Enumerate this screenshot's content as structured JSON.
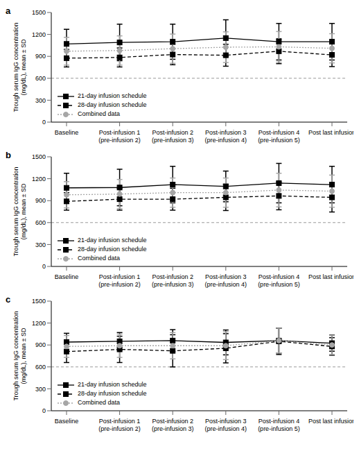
{
  "chart_data": [
    {
      "type": "line",
      "title": "a",
      "categories": [
        "Baseline",
        "Post-infusion 1 (pre-infusion 2)",
        "Post-infusion 2 (pre-infusion 3)",
        "Post-infusion 3 (pre-infusion 4)",
        "Post-infusion 4 (pre-infusion 5)",
        "Post last infusion"
      ],
      "y_label": "Trough serum IgG concentration (mg/dL), mean ± SD",
      "ylim": [
        0,
        1500
      ],
      "yticks": [
        0,
        300,
        600,
        900,
        1200,
        1500
      ],
      "reference_line": 600,
      "legend": "lower left",
      "series": [
        {
          "name": "21-day infusion schedule",
          "color": "#000000",
          "marker": "square",
          "line_style": "solid",
          "values": [
            1070,
            1090,
            1100,
            1150,
            1100,
            1100
          ],
          "sd": [
            200,
            250,
            240,
            250,
            250,
            250
          ]
        },
        {
          "name": "28-day infusion schedule",
          "color": "#000000",
          "marker": "square",
          "line_style": "dashed",
          "values": [
            875,
            885,
            925,
            915,
            970,
            920
          ],
          "sd": [
            120,
            130,
            140,
            150,
            170,
            160
          ]
        },
        {
          "name": "Combined data",
          "color": "#a6a6a6",
          "marker": "circle",
          "line_style": "dotted",
          "values": [
            970,
            980,
            1005,
            1025,
            1030,
            1010
          ],
          "sd": [
            190,
            200,
            200,
            210,
            210,
            200
          ]
        }
      ]
    },
    {
      "type": "line",
      "title": "b",
      "categories": [
        "Baseline",
        "Post-infusion 1 (pre-infusion 2)",
        "Post-infusion 2 (pre-infusion 3)",
        "Post-infusion 3 (pre-infusion 4)",
        "Post-infusion 4 (pre-infusion 5)",
        "Post last infusion"
      ],
      "y_label": "Trough serum IgG concentration (mg/dL), mean ± SD",
      "ylim": [
        0,
        1500
      ],
      "yticks": [
        0,
        300,
        600,
        900,
        1200,
        1500
      ],
      "reference_line": 600,
      "legend": "lower left",
      "series": [
        {
          "name": "21-day infusion schedule",
          "color": "#000000",
          "marker": "square",
          "line_style": "solid",
          "values": [
            1075,
            1080,
            1120,
            1095,
            1140,
            1120
          ],
          "sd": [
            200,
            250,
            250,
            210,
            270,
            250
          ]
        },
        {
          "name": "28-day infusion schedule",
          "color": "#000000",
          "marker": "square",
          "line_style": "dashed",
          "values": [
            890,
            920,
            920,
            945,
            965,
            945
          ],
          "sd": [
            120,
            150,
            150,
            180,
            190,
            200
          ]
        },
        {
          "name": "Combined data",
          "color": "#a6a6a6",
          "marker": "circle",
          "line_style": "dotted",
          "values": [
            980,
            990,
            1010,
            1010,
            1045,
            1030
          ],
          "sd": [
            180,
            200,
            200,
            200,
            230,
            220
          ]
        }
      ]
    },
    {
      "type": "line",
      "title": "c",
      "categories": [
        "Baseline",
        "Post-infusion 1 (pre-infusion 2)",
        "Post-infusion 2 (pre-infusion 3)",
        "Post-infusion 3 (pre-infusion 4)",
        "Post-infusion 4 (pre-infusion 5)",
        "Post last infusion"
      ],
      "y_label": "Trough serum IgG concentration (mg/dL), mean ± SD",
      "ylim": [
        0,
        1500
      ],
      "yticks": [
        0,
        300,
        600,
        900,
        1200,
        1500
      ],
      "reference_line": 600,
      "legend": "lower left",
      "series": [
        {
          "name": "21-day infusion schedule",
          "color": "#000000",
          "marker": "square",
          "line_style": "solid",
          "values": [
            940,
            950,
            960,
            935,
            960,
            925
          ],
          "sd": [
            120,
            120,
            150,
            170,
            170,
            110
          ]
        },
        {
          "name": "28-day infusion schedule",
          "color": "#000000",
          "marker": "square",
          "line_style": "dashed",
          "values": [
            810,
            840,
            820,
            855,
            950,
            880
          ],
          "sd": [
            150,
            180,
            220,
            200,
            180,
            120
          ]
        },
        {
          "name": "Combined data",
          "color": "#a6a6a6",
          "marker": "circle",
          "line_style": "dotted",
          "values": [
            880,
            890,
            890,
            890,
            960,
            900
          ],
          "sd": [
            150,
            160,
            180,
            190,
            170,
            130
          ]
        }
      ]
    }
  ]
}
